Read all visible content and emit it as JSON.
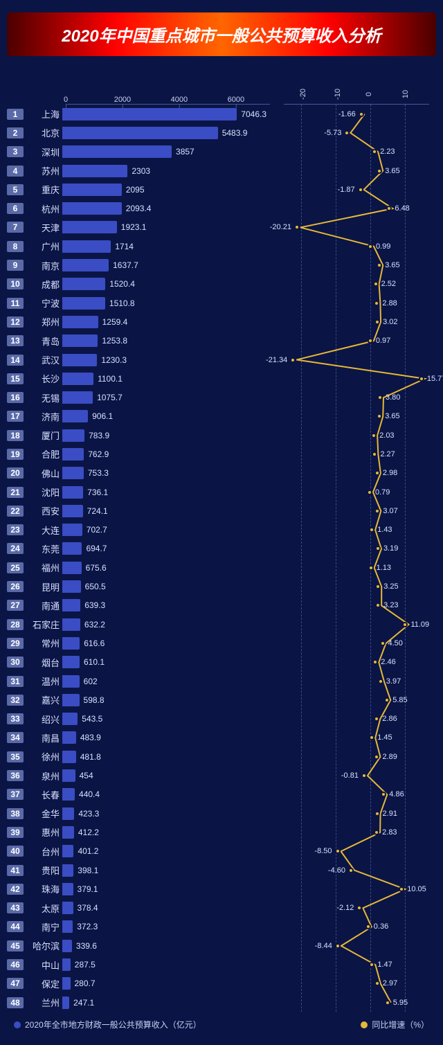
{
  "title": "2020年中国重点城市一般公共预算收入分析",
  "bar_axis": {
    "min": 0,
    "max": 7200,
    "ticks": [
      0,
      2000,
      4000,
      6000
    ]
  },
  "line_axis": {
    "min": -25,
    "max": 17,
    "ticks": [
      -20,
      -10,
      0,
      10
    ]
  },
  "colors": {
    "bar": "#3a4dc4",
    "line": "#e8b838",
    "background": "#0a1545",
    "grid": "#3a4a8a",
    "text": "#d8e0ff"
  },
  "legend": {
    "bar": "2020年全市地方财政一般公共预算收入（亿元）",
    "line": "同比增速（%）"
  },
  "rows": [
    {
      "rank": 1,
      "city": "上海",
      "value": 7046.3,
      "growth": -1.66
    },
    {
      "rank": 2,
      "city": "北京",
      "value": 5483.9,
      "growth": -5.73
    },
    {
      "rank": 3,
      "city": "深圳",
      "value": 3857,
      "growth": 2.23
    },
    {
      "rank": 4,
      "city": "苏州",
      "value": 2303,
      "growth": 3.65
    },
    {
      "rank": 5,
      "city": "重庆",
      "value": 2095,
      "growth": -1.87
    },
    {
      "rank": 6,
      "city": "杭州",
      "value": 2093.4,
      "growth": 6.48
    },
    {
      "rank": 7,
      "city": "天津",
      "value": 1923.1,
      "growth": -20.21
    },
    {
      "rank": 8,
      "city": "广州",
      "value": 1714,
      "growth": 0.99
    },
    {
      "rank": 9,
      "city": "南京",
      "value": 1637.7,
      "growth": 3.65
    },
    {
      "rank": 10,
      "city": "成都",
      "value": 1520.4,
      "growth": 2.52
    },
    {
      "rank": 11,
      "city": "宁波",
      "value": 1510.8,
      "growth": 2.88
    },
    {
      "rank": 12,
      "city": "郑州",
      "value": 1259.4,
      "growth": 3.02
    },
    {
      "rank": 13,
      "city": "青岛",
      "value": 1253.8,
      "growth": 0.97
    },
    {
      "rank": 14,
      "city": "武汉",
      "value": 1230.3,
      "growth": -21.34
    },
    {
      "rank": 15,
      "city": "长沙",
      "value": 1100.1,
      "growth": 15.77
    },
    {
      "rank": 16,
      "city": "无锡",
      "value": 1075.7,
      "growth": 3.8,
      "label": "3.80"
    },
    {
      "rank": 17,
      "city": "济南",
      "value": 906.1,
      "growth": 3.65
    },
    {
      "rank": 18,
      "city": "厦门",
      "value": 783.9,
      "growth": 2.03
    },
    {
      "rank": 19,
      "city": "合肥",
      "value": 762.9,
      "growth": 2.27
    },
    {
      "rank": 20,
      "city": "佛山",
      "value": 753.3,
      "growth": 2.98
    },
    {
      "rank": 21,
      "city": "沈阳",
      "value": 736.1,
      "growth": 0.79
    },
    {
      "rank": 22,
      "city": "西安",
      "value": 724.1,
      "growth": 3.07
    },
    {
      "rank": 23,
      "city": "大连",
      "value": 702.7,
      "growth": 1.43
    },
    {
      "rank": 24,
      "city": "东莞",
      "value": 694.7,
      "growth": 3.19
    },
    {
      "rank": 25,
      "city": "福州",
      "value": 675.6,
      "growth": 1.13
    },
    {
      "rank": 26,
      "city": "昆明",
      "value": 650.5,
      "growth": 3.25
    },
    {
      "rank": 27,
      "city": "南通",
      "value": 639.3,
      "growth": 3.23
    },
    {
      "rank": 28,
      "city": "石家庄",
      "value": 632.2,
      "growth": 11.09
    },
    {
      "rank": 29,
      "city": "常州",
      "value": 616.6,
      "growth": 4.5,
      "label": "4.50"
    },
    {
      "rank": 30,
      "city": "烟台",
      "value": 610.1,
      "growth": 2.46
    },
    {
      "rank": 31,
      "city": "温州",
      "value": 602,
      "growth": 3.97
    },
    {
      "rank": 32,
      "city": "嘉兴",
      "value": 598.8,
      "growth": 5.85
    },
    {
      "rank": 33,
      "city": "绍兴",
      "value": 543.5,
      "growth": 2.86
    },
    {
      "rank": 34,
      "city": "南昌",
      "value": 483.9,
      "growth": 1.45
    },
    {
      "rank": 35,
      "city": "徐州",
      "value": 481.8,
      "growth": 2.89
    },
    {
      "rank": 36,
      "city": "泉州",
      "value": 454,
      "growth": -0.81
    },
    {
      "rank": 37,
      "city": "长春",
      "value": 440.4,
      "growth": 4.86
    },
    {
      "rank": 38,
      "city": "金华",
      "value": 423.3,
      "growth": 2.91
    },
    {
      "rank": 39,
      "city": "惠州",
      "value": 412.2,
      "growth": 2.83
    },
    {
      "rank": 40,
      "city": "台州",
      "value": 401.2,
      "growth": -8.5,
      "label": "-8.50"
    },
    {
      "rank": 41,
      "city": "贵阳",
      "value": 398.1,
      "growth": -4.6,
      "label": "-4.60"
    },
    {
      "rank": 42,
      "city": "珠海",
      "value": 379.1,
      "growth": 10.05
    },
    {
      "rank": 43,
      "city": "太原",
      "value": 378.4,
      "growth": -2.12
    },
    {
      "rank": 44,
      "city": "南宁",
      "value": 372.3,
      "growth": 0.36
    },
    {
      "rank": 45,
      "city": "哈尔滨",
      "value": 339.6,
      "growth": -8.44
    },
    {
      "rank": 46,
      "city": "中山",
      "value": 287.5,
      "growth": 1.47
    },
    {
      "rank": 47,
      "city": "保定",
      "value": 280.7,
      "growth": 2.97
    },
    {
      "rank": 48,
      "city": "兰州",
      "value": 247.1,
      "growth": 5.95
    }
  ]
}
